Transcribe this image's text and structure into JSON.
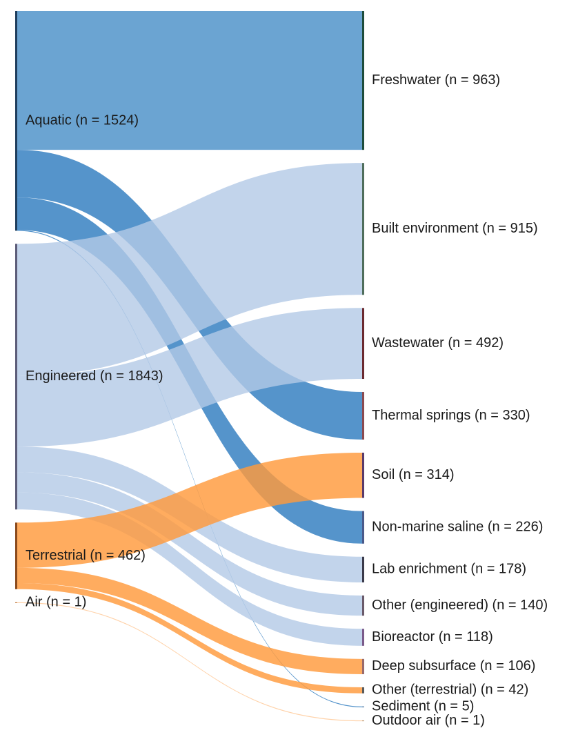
{
  "chart_data": {
    "type": "sankey",
    "title": "",
    "sources": [
      {
        "id": "aquatic",
        "label": "Aquatic (n = 1524)",
        "value": 1524,
        "bar_color": "#1f3d5c"
      },
      {
        "id": "engineered",
        "label": "Engineered (n = 1843)",
        "value": 1843,
        "bar_color": "#5c5c78"
      },
      {
        "id": "terrestrial",
        "label": "Terrestrial (n = 462)",
        "value": 462,
        "bar_color": "#8a4a1c"
      },
      {
        "id": "air",
        "label": "Air (n = 1)",
        "value": 1,
        "bar_color": "#c07a40"
      }
    ],
    "targets": [
      {
        "id": "freshwater",
        "label": "Freshwater (n = 963)",
        "value": 963,
        "bar_color": "#1e4d3c"
      },
      {
        "id": "built",
        "label": "Built environment (n = 915)",
        "value": 915,
        "bar_color": "#4f6e5c"
      },
      {
        "id": "wastewater",
        "label": "Wastewater (n = 492)",
        "value": 492,
        "bar_color": "#6b2a30"
      },
      {
        "id": "thermal",
        "label": "Thermal springs (n = 330)",
        "value": 330,
        "bar_color": "#8a4a50"
      },
      {
        "id": "soil",
        "label": "Soil (n = 314)",
        "value": 314,
        "bar_color": "#5a3a6a"
      },
      {
        "id": "nonmarine",
        "label": "Non-marine saline (n = 226)",
        "value": 226,
        "bar_color": "#4a5a8a"
      },
      {
        "id": "lab",
        "label": "Lab enrichment (n = 178)",
        "value": 178,
        "bar_color": "#3a3a4a"
      },
      {
        "id": "othereng",
        "label": "Other (engineered) (n = 140)",
        "value": 140,
        "bar_color": "#6a5a6a"
      },
      {
        "id": "bioreactor",
        "label": "Bioreactor (n = 118)",
        "value": 118,
        "bar_color": "#7a5a8a"
      },
      {
        "id": "deep",
        "label": "Deep subsurface (n = 106)",
        "value": 106,
        "bar_color": "#9a6a6a"
      },
      {
        "id": "otherterr",
        "label": "Other (terrestrial) (n = 42)",
        "value": 42,
        "bar_color": "#5a5a5a"
      },
      {
        "id": "sediment",
        "label": "Sediment (n = 5)",
        "value": 5,
        "bar_color": "#3a6a9a"
      },
      {
        "id": "outdoor",
        "label": "Outdoor air (n = 1)",
        "value": 1,
        "bar_color": "#c09a70"
      }
    ],
    "links": [
      {
        "source": "aquatic",
        "target": "freshwater",
        "value": 963,
        "color": "#4a90c8"
      },
      {
        "source": "aquatic",
        "target": "thermal",
        "value": 330,
        "color": "#2f7dc0"
      },
      {
        "source": "aquatic",
        "target": "nonmarine",
        "value": 226,
        "color": "#2f7dc0"
      },
      {
        "source": "aquatic",
        "target": "sediment",
        "value": 5,
        "color": "#2f7dc0"
      },
      {
        "source": "engineered",
        "target": "built",
        "value": 915,
        "color": "#b3c9e6"
      },
      {
        "source": "engineered",
        "target": "wastewater",
        "value": 492,
        "color": "#b3c9e6"
      },
      {
        "source": "engineered",
        "target": "lab",
        "value": 178,
        "color": "#b3c9e6"
      },
      {
        "source": "engineered",
        "target": "othereng",
        "value": 140,
        "color": "#b3c9e6"
      },
      {
        "source": "engineered",
        "target": "bioreactor",
        "value": 118,
        "color": "#b3c9e6"
      },
      {
        "source": "terrestrial",
        "target": "soil",
        "value": 314,
        "color": "#ff9a3c"
      },
      {
        "source": "terrestrial",
        "target": "deep",
        "value": 106,
        "color": "#ff9a3c"
      },
      {
        "source": "terrestrial",
        "target": "otherterr",
        "value": 42,
        "color": "#ff9a3c"
      },
      {
        "source": "air",
        "target": "outdoor",
        "value": 1,
        "color": "#ffc896"
      }
    ]
  }
}
